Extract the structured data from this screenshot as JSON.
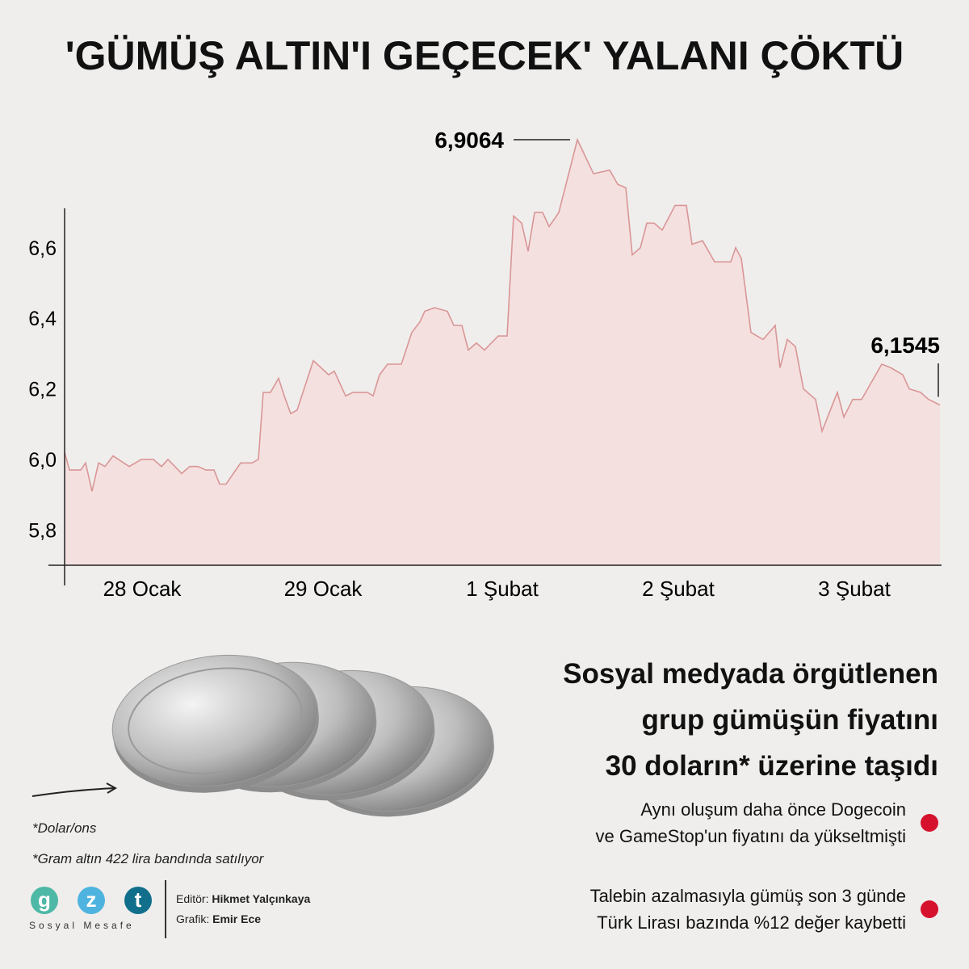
{
  "title": "'GÜMÜŞ ALTIN'I GEÇECEK' YALANI ÇÖKTÜ",
  "chart_data": {
    "type": "area",
    "title": "",
    "xlabel": "",
    "ylabel": "",
    "x_tick_labels": [
      "28 Ocak",
      "29 Ocak",
      "1 Şubat",
      "2 Şubat",
      "3 Şubat"
    ],
    "y_ticks": [
      "5,8",
      "6,0",
      "6,2",
      "6,4",
      "6,6"
    ],
    "y_tick_values": [
      5.8,
      6.0,
      6.2,
      6.4,
      6.6
    ],
    "ylim": [
      5.7,
      6.95
    ],
    "grid": false,
    "colors": {
      "line": "#d99696",
      "fill": "#f5e0e0"
    },
    "values": [
      6.02,
      5.97,
      5.97,
      5.99,
      5.91,
      5.99,
      5.98,
      6.01,
      5.98,
      6.0,
      6.0,
      5.98,
      6.0,
      5.96,
      5.98,
      5.98,
      5.97,
      5.97,
      5.93,
      5.93,
      5.99,
      5.99,
      6.0,
      6.19,
      6.19,
      6.23,
      6.18,
      6.13,
      6.14,
      6.28,
      6.24,
      6.25,
      6.18,
      6.19,
      6.19,
      6.18,
      6.24,
      6.27,
      6.27,
      6.36,
      6.39,
      6.42,
      6.43,
      6.42,
      6.38,
      6.38,
      6.31,
      6.33,
      6.31,
      6.35,
      6.35,
      6.69,
      6.67,
      6.59,
      6.7,
      6.7,
      6.66,
      6.7,
      6.9064,
      6.81,
      6.82,
      6.78,
      6.77,
      6.58,
      6.6,
      6.67,
      6.67,
      6.65,
      6.72,
      6.72,
      6.61,
      6.62,
      6.56,
      6.56,
      6.6,
      6.57,
      6.36,
      6.34,
      6.38,
      6.26,
      6.34,
      6.32,
      6.2,
      6.17,
      6.08,
      6.15,
      6.19,
      6.12,
      6.17,
      6.17,
      6.27,
      6.26,
      6.24,
      6.2,
      6.19,
      6.17,
      6.1545
    ],
    "annotations": [
      {
        "label": "6,9064",
        "value": 6.9064,
        "note": "max"
      },
      {
        "label": "6,1545",
        "value": 6.1545,
        "note": "last"
      }
    ]
  },
  "headline": [
    "Sosyal medyada örgütlenen",
    "grup gümüşün fiyatını",
    "30 doların* üzerine taşıdı"
  ],
  "bullets": [
    {
      "lines": [
        "Aynı oluşum daha önce Dogecoin",
        "ve GameStop'un fiyatını da yükseltmişti"
      ]
    },
    {
      "lines": [
        "Talebin azalmasıyla gümüş son 3 günde",
        "Türk Lirası bazında %12 değer kaybetti"
      ]
    }
  ],
  "notes": [
    "*Dolar/ons",
    "*Gram altın 422 lira bandında satılıyor"
  ],
  "logo": {
    "letters": [
      "g",
      "z",
      "t"
    ],
    "colors": [
      "#4db8a6",
      "#4fb3df",
      "#126f8c"
    ],
    "tagline": "Sosyal Mesafe"
  },
  "credits": {
    "editor_label": "Editör:",
    "editor": "Hikmet Yalçınkaya",
    "graphic_label": "Grafik:",
    "graphic": "Emir Ece"
  },
  "accent": "#d5112d"
}
